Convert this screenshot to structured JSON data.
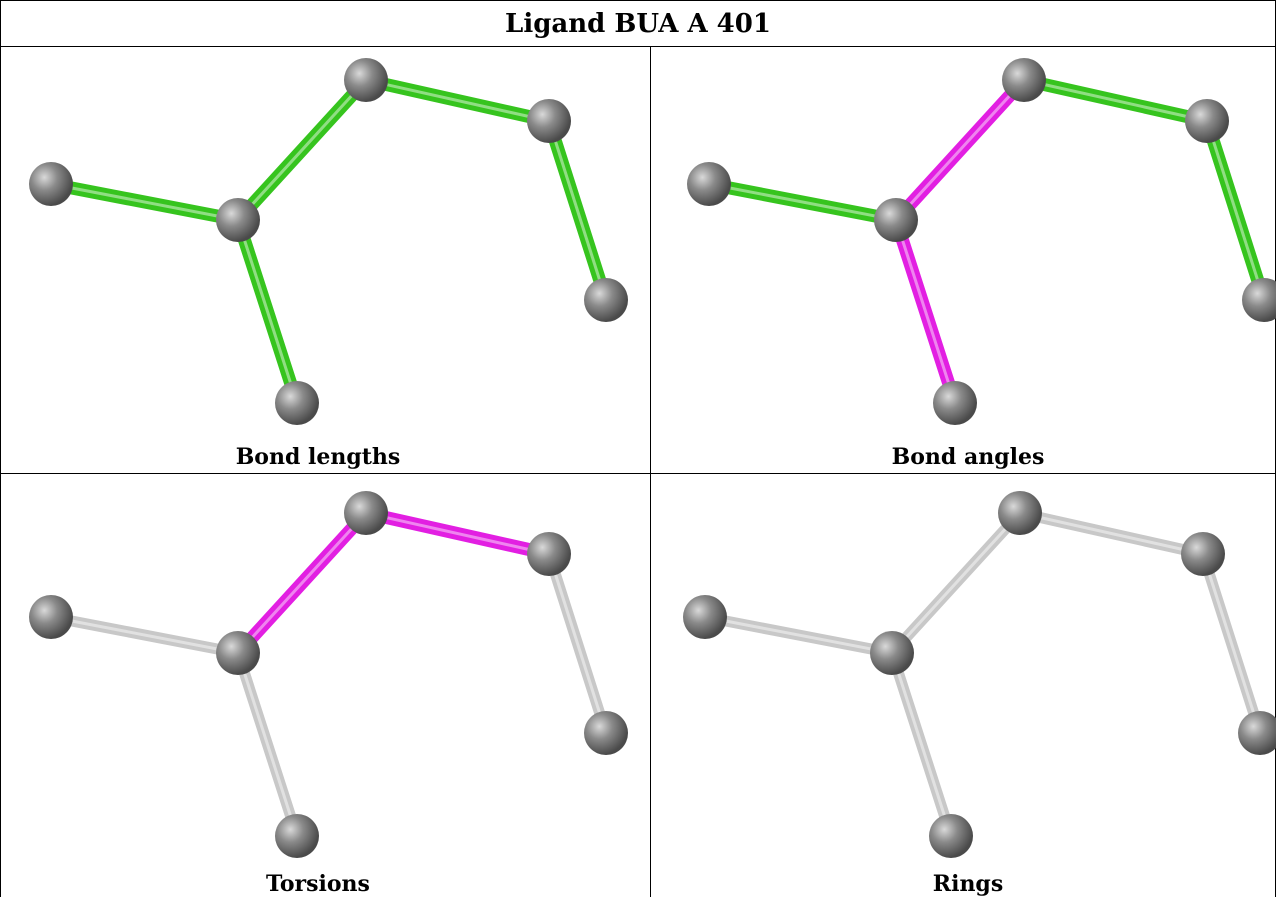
{
  "title": "Ligand BUA A 401",
  "colors": {
    "green": "#36c41e",
    "magenta": "#e21fe2",
    "grey_bond": "#c8c8c8",
    "atom": "#7a7a7a"
  },
  "panels": [
    {
      "caption": "Bond lengths",
      "bond_colors": [
        "green",
        "green",
        "green",
        "green",
        "green"
      ]
    },
    {
      "caption": "Bond angles",
      "bond_colors": [
        "green",
        "magenta",
        "magenta",
        "green",
        "green"
      ]
    },
    {
      "caption": "Torsions",
      "bond_colors": [
        "grey_bond",
        "grey_bond",
        "magenta",
        "magenta",
        "grey_bond"
      ]
    },
    {
      "caption": "Rings",
      "bond_colors": [
        "grey_bond",
        "grey_bond",
        "grey_bond",
        "grey_bond",
        "grey_bond"
      ]
    }
  ]
}
